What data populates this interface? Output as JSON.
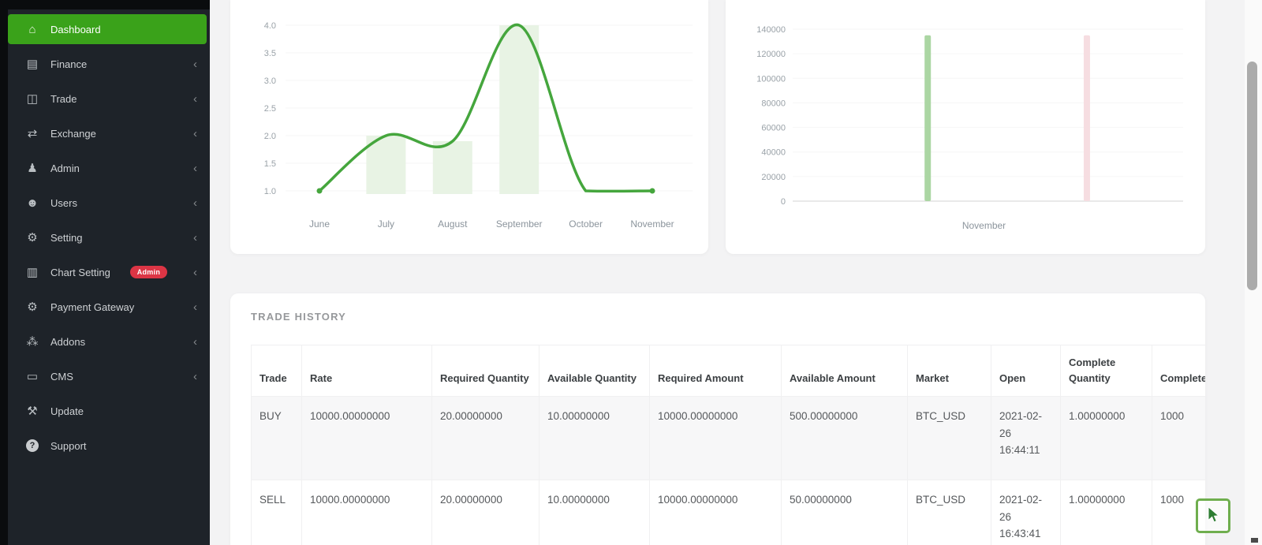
{
  "colors": {
    "accent_green": "#3aa21a",
    "line_green": "#45a63d",
    "line_fill_bar": "#e8f3e4",
    "bar_green": "#abd6a3",
    "bar_pink": "#f6dde1",
    "badge_red": "#dc3545"
  },
  "sidebar": {
    "chevron_glyph": "‹",
    "items": [
      {
        "label": "Dashboard",
        "icon": "home-icon",
        "glyph": "⌂",
        "active": true,
        "chevron": false
      },
      {
        "label": "Finance",
        "icon": "finance-card-icon",
        "glyph": "▤",
        "chevron": true
      },
      {
        "label": "Trade",
        "icon": "trade-chart-icon",
        "glyph": "◫",
        "chevron": true,
        "dot": true
      },
      {
        "label": "Exchange",
        "icon": "exchange-arrows-icon",
        "glyph": "⇄",
        "chevron": true
      },
      {
        "label": "Admin",
        "icon": "admin-person-icon",
        "glyph": "♟",
        "chevron": true
      },
      {
        "label": "Users",
        "icon": "users-group-icon",
        "glyph": "☻",
        "chevron": true
      },
      {
        "label": "Setting",
        "icon": "gear-icon",
        "glyph": "⚙",
        "chevron": true
      },
      {
        "label": "Chart Setting",
        "icon": "bar-chart-icon",
        "glyph": "▥",
        "chevron": true,
        "badge": "Admin"
      },
      {
        "label": "Payment Gateway",
        "icon": "gears-icon",
        "glyph": "⚙",
        "chevron": true
      },
      {
        "label": "Addons",
        "icon": "addons-nodes-icon",
        "glyph": "⁂",
        "chevron": true
      },
      {
        "label": "CMS",
        "icon": "monitor-icon",
        "glyph": "▭",
        "chevron": true
      },
      {
        "label": "Update",
        "icon": "wrench-icon",
        "glyph": "⚒",
        "chevron": false
      },
      {
        "label": "Support",
        "icon": "question-circle-icon",
        "glyph": "?",
        "chevron": false,
        "circle": true
      }
    ]
  },
  "chart_data": [
    {
      "type": "line",
      "title": "",
      "x": [
        "June",
        "July",
        "August",
        "September",
        "October",
        "November"
      ],
      "series": [
        {
          "name": "trades-line",
          "type": "line",
          "values": [
            1.0,
            2.0,
            1.9,
            4.0,
            1.0,
            1.0
          ]
        },
        {
          "name": "trades-volume-bars",
          "type": "bar",
          "values": [
            null,
            2.0,
            1.9,
            4.0,
            null,
            null
          ]
        }
      ],
      "yticks": [
        "1.0",
        "1.5",
        "2.0",
        "2.5",
        "3.0",
        "3.5",
        "4.0"
      ],
      "ylim": [
        1.0,
        4.0
      ],
      "grid": "horizontal-faint",
      "legend": "none"
    },
    {
      "type": "bar",
      "title": "",
      "categories": [
        "November"
      ],
      "series": [
        {
          "name": "buy-volume-bar",
          "values": [
            135000
          ],
          "color_key": "bar_green",
          "x_fraction": 0.353
        },
        {
          "name": "sell-volume-bar",
          "values": [
            135000
          ],
          "color_key": "bar_pink",
          "x_fraction": 0.769
        }
      ],
      "yticks": [
        "0",
        "20000",
        "40000",
        "60000",
        "80000",
        "100000",
        "120000",
        "140000"
      ],
      "ylim": [
        0,
        140000
      ],
      "grid": "horizontal-faint",
      "legend": "none"
    }
  ],
  "trade_history": {
    "title": "TRADE HISTORY",
    "columns": [
      {
        "key": "trade",
        "label": "Trade"
      },
      {
        "key": "rate",
        "label": "Rate"
      },
      {
        "key": "required_quantity",
        "label": "Required Quantity"
      },
      {
        "key": "available_quantity",
        "label": "Available Quantity"
      },
      {
        "key": "required_amount",
        "label": "Required Amount"
      },
      {
        "key": "available_amount",
        "label": "Available Amount"
      },
      {
        "key": "market",
        "label": "Market"
      },
      {
        "key": "open",
        "label": "Open"
      },
      {
        "key": "complete_quantity",
        "label": "Complete Quantity"
      },
      {
        "key": "complete_amount",
        "label": "Complete Amount"
      }
    ],
    "rows": [
      {
        "trade": "BUY",
        "rate": "10000.00000000",
        "required_quantity": "20.00000000",
        "available_quantity": "10.00000000",
        "required_amount": "10000.00000000",
        "available_amount": "500.00000000",
        "market": "BTC_USD",
        "open": "2021-02-26 16:44:11",
        "complete_quantity": "1.00000000",
        "complete_amount": "1000"
      },
      {
        "trade": "SELL",
        "rate": "10000.00000000",
        "required_quantity": "20.00000000",
        "available_quantity": "10.00000000",
        "required_amount": "10000.00000000",
        "available_amount": "50.00000000",
        "market": "BTC_USD",
        "open": "2021-02-26 16:43:41",
        "complete_quantity": "1.00000000",
        "complete_amount": "1000"
      }
    ]
  }
}
